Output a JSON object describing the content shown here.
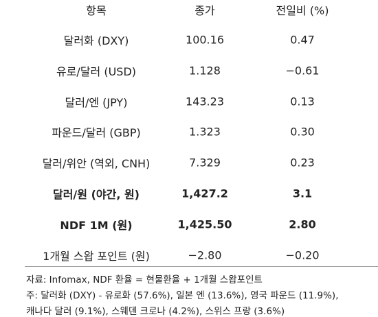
{
  "table": {
    "header": [
      "항목",
      "종가",
      "전일비 (%)"
    ],
    "rows": [
      [
        "달러화 (DXY)",
        "100.16",
        "0.47"
      ],
      [
        "유로/달러 (USD)",
        "1.128",
        "−0.61"
      ],
      [
        "달러/엔 (JPY)",
        "143.23",
        "0.13"
      ],
      [
        "파운드/달러 (GBP)",
        "1.323",
        "0.30"
      ],
      [
        "달러/위안 (역외, CNH)",
        "7.329",
        "0.23"
      ],
      [
        "달러/원 (야간, 원)",
        "1,427.2",
        "3.1"
      ],
      [
        "NDF 1M (원)",
        "1,425.50",
        "2.80"
      ],
      [
        "1개월 스왑 포인트 (원)",
        "−2.80",
        "−0.20"
      ]
    ]
  },
  "notes": [
    "자료: Infomax, NDF 환율 = 현물환율 + 1개월 스왑포인트",
    "주: 달러화 (DXY) - 유로화 (57.6%), 일본 엔 (13.6%), 영국 파운드 (11.9%),",
    "캐나다 달러 (9.1%), 스웨덴 크로나 (4.2%), 스위스 프랑 (3.6%)"
  ]
}
